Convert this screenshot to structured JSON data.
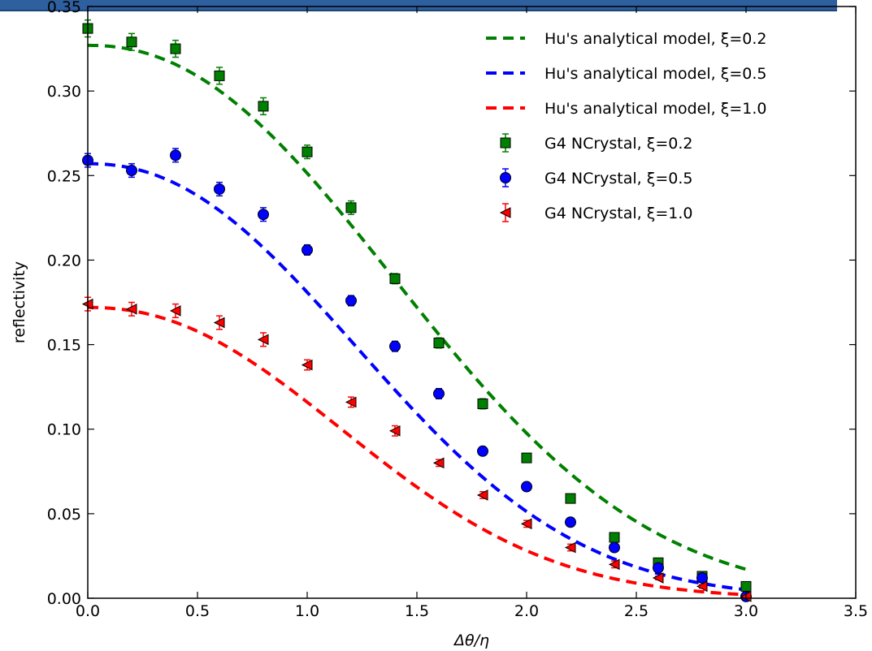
{
  "chart_data": {
    "type": "scatter",
    "xlabel": "Δθ/η",
    "ylabel": "reflectivity",
    "xlim": [
      0.0,
      3.5
    ],
    "ylim": [
      0.0,
      0.35
    ],
    "xticks": [
      "0.0",
      "0.5",
      "1.0",
      "1.5",
      "2.0",
      "2.5",
      "3.0",
      "3.5"
    ],
    "yticks": [
      "0.00",
      "0.05",
      "0.10",
      "0.15",
      "0.20",
      "0.25",
      "0.30",
      "0.35"
    ],
    "grid": false,
    "legend_position": "top-right",
    "lines": [
      {
        "label": "Hu's analytical model, ξ=0.2",
        "color": "#008000",
        "style": "dashed",
        "amplitude": 0.327,
        "width": 1.55
      },
      {
        "label": "Hu's analytical model, ξ=0.5",
        "color": "#0000ff",
        "style": "dashed",
        "amplitude": 0.257,
        "width": 1.36
      },
      {
        "label": "Hu's analytical model, ξ=1.0",
        "color": "#ff0000",
        "style": "dashed",
        "amplitude": 0.172,
        "width": 1.29
      }
    ],
    "series": [
      {
        "name": "G4 NCrystal, ξ=0.2",
        "marker": "square",
        "color": "#008000",
        "x": [
          0.0,
          0.2,
          0.4,
          0.6,
          0.8,
          1.0,
          1.2,
          1.4,
          1.6,
          1.8,
          2.0,
          2.2,
          2.4,
          2.6,
          2.8,
          3.0
        ],
        "y": [
          0.337,
          0.329,
          0.325,
          0.309,
          0.291,
          0.264,
          0.231,
          0.189,
          0.151,
          0.115,
          0.083,
          0.059,
          0.036,
          0.021,
          0.013,
          0.007
        ],
        "err": [
          0.005,
          0.005,
          0.005,
          0.005,
          0.005,
          0.004,
          0.004,
          0.003,
          0.003,
          0.003,
          0.002,
          0.002,
          0.002,
          0.002,
          0.001,
          0.001
        ]
      },
      {
        "name": "G4 NCrystal, ξ=0.5",
        "marker": "circle",
        "color": "#0000ff",
        "x": [
          0.0,
          0.2,
          0.4,
          0.6,
          0.8,
          1.0,
          1.2,
          1.4,
          1.6,
          1.8,
          2.0,
          2.2,
          2.4,
          2.6,
          2.8,
          3.0
        ],
        "y": [
          0.259,
          0.253,
          0.262,
          0.242,
          0.227,
          0.206,
          0.176,
          0.149,
          0.121,
          0.087,
          0.066,
          0.045,
          0.03,
          0.018,
          0.012,
          0.001
        ],
        "err": [
          0.004,
          0.004,
          0.004,
          0.004,
          0.004,
          0.003,
          0.003,
          0.003,
          0.003,
          0.002,
          0.002,
          0.002,
          0.002,
          0.001,
          0.001,
          0.001
        ]
      },
      {
        "name": "G4 NCrystal, ξ=1.0",
        "marker": "triangle-left",
        "color": "#ff0000",
        "x": [
          0.0,
          0.2,
          0.4,
          0.6,
          0.8,
          1.0,
          1.2,
          1.4,
          1.6,
          1.8,
          2.0,
          2.2,
          2.4,
          2.6,
          2.8,
          3.0
        ],
        "y": [
          0.174,
          0.171,
          0.17,
          0.163,
          0.153,
          0.138,
          0.116,
          0.099,
          0.08,
          0.061,
          0.044,
          0.03,
          0.02,
          0.012,
          0.007,
          0.001
        ],
        "err": [
          0.004,
          0.004,
          0.004,
          0.004,
          0.004,
          0.003,
          0.003,
          0.003,
          0.002,
          0.002,
          0.002,
          0.002,
          0.002,
          0.001,
          0.001,
          0.001
        ]
      }
    ]
  }
}
